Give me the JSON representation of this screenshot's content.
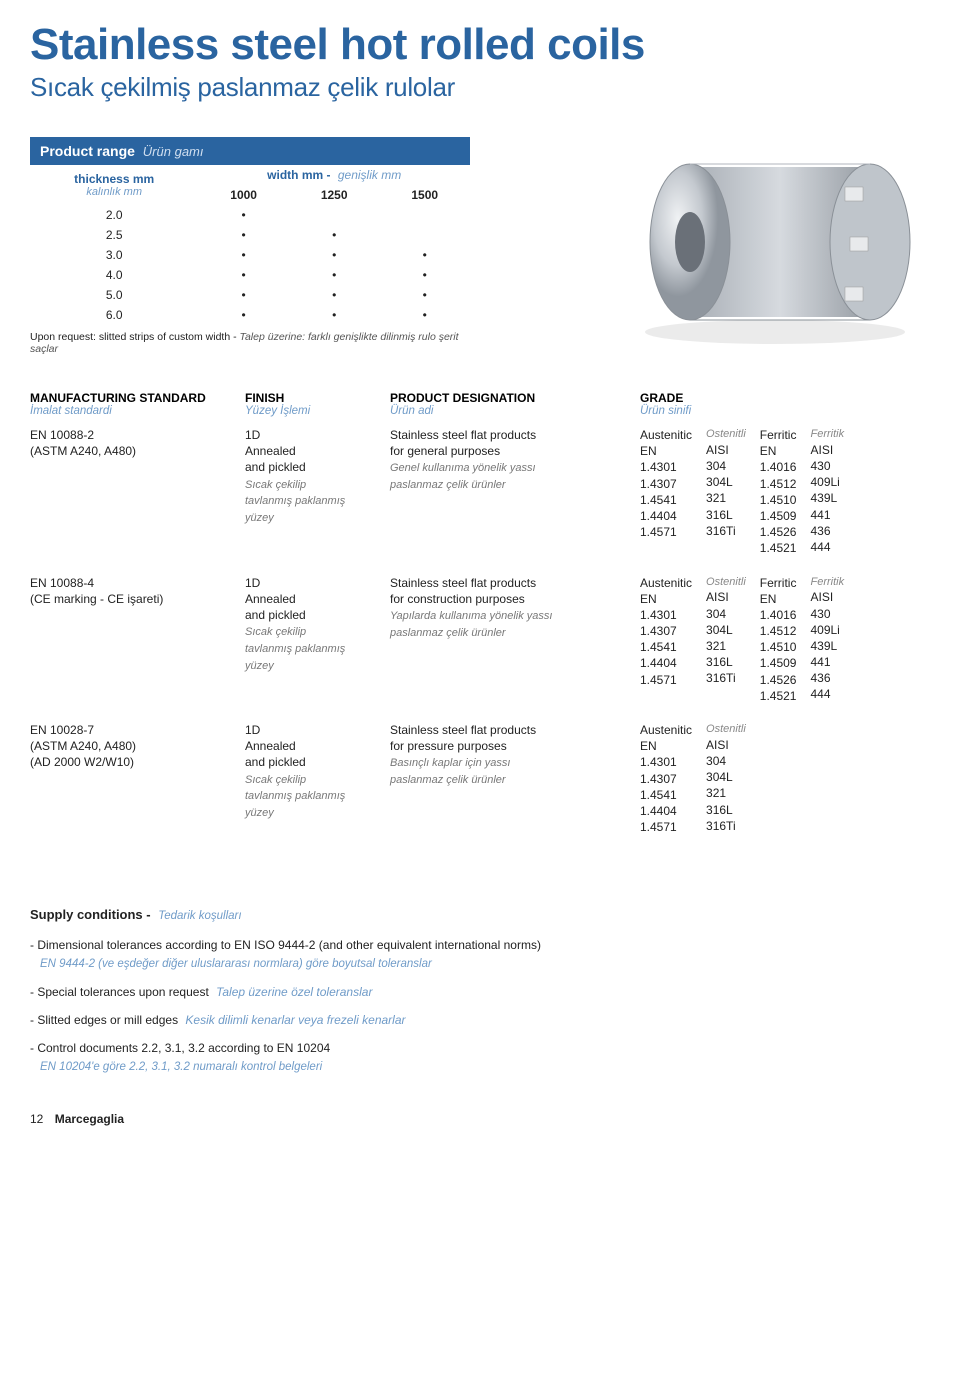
{
  "header": {
    "title": "Stainless steel hot rolled coils",
    "subtitle": "Sıcak çekilmiş paslanmaz çelik rulolar"
  },
  "product_range": {
    "label": "Product range",
    "label_it": "Ürün gamı",
    "thickness_label": "thickness mm",
    "thickness_label_it": "kalınlık mm",
    "width_label": "width mm -",
    "width_label_it": "genişlik mm",
    "widths": [
      "1000",
      "1250",
      "1500"
    ],
    "rows": [
      {
        "t": "2.0",
        "dots": [
          "•",
          "",
          ""
        ]
      },
      {
        "t": "2.5",
        "dots": [
          "•",
          "•",
          ""
        ]
      },
      {
        "t": "3.0",
        "dots": [
          "•",
          "•",
          "•"
        ]
      },
      {
        "t": "4.0",
        "dots": [
          "•",
          "•",
          "•"
        ]
      },
      {
        "t": "5.0",
        "dots": [
          "•",
          "•",
          "•"
        ]
      },
      {
        "t": "6.0",
        "dots": [
          "•",
          "•",
          "•"
        ]
      }
    ],
    "note": "Upon request: slitted strips of custom width -",
    "note_it": "Talep üzerine: farklı genişlikte dilinmiş rulo şerit saçlar"
  },
  "standards": {
    "head_standard": "MANUFACTURING STANDARD",
    "head_standard_it": "İmalat standardi",
    "head_finish": "FINISH",
    "head_finish_it": "Yüzey İşlemi",
    "head_product": "PRODUCT DESIGNATION",
    "head_product_it": "Ürün adi",
    "head_grade": "GRADE",
    "head_grade_it": "Ürün sinifi",
    "rows": [
      {
        "standard_l1": "EN 10088-2",
        "standard_l2": "(ASTM A240, A480)",
        "finish_l1": "1D",
        "finish_l2": "Annealed",
        "finish_l3": "and pickled",
        "finish_it1": "Sıcak çekilip",
        "finish_it2": "tavlanmış paklanmış",
        "finish_it3": "yüzey",
        "product_l1": "Stainless steel flat products",
        "product_l2": "for general purposes",
        "product_it1": "Genel kullanıma yönelik yassı",
        "product_it2": "paslanmaz çelik ürünler",
        "grade": {
          "aust_label": "Austenitic",
          "aust_label_it": "Ostenitli",
          "aust_en_head": "EN",
          "aust_en": [
            "1.4301",
            "1.4307",
            "1.4541",
            "1.4404",
            "1.4571"
          ],
          "aust_aisi_head": "AISI",
          "aust_aisi": [
            "304",
            "304L",
            "321",
            "316L",
            "316Ti"
          ],
          "ferr_label": "Ferritic",
          "ferr_label_it": "Ferritik",
          "ferr_en_head": "EN",
          "ferr_en": [
            "1.4016",
            "1.4512",
            "1.4510",
            "1.4509",
            "1.4526",
            "1.4521"
          ],
          "ferr_aisi_head": "AISI",
          "ferr_aisi": [
            "430",
            "409Li",
            "439L",
            "441",
            "436",
            "444"
          ]
        }
      },
      {
        "standard_l1": "EN 10088-4",
        "standard_l2": "(CE marking - CE işareti)",
        "finish_l1": "1D",
        "finish_l2": "Annealed",
        "finish_l3": "and pickled",
        "finish_it1": "Sıcak çekilip",
        "finish_it2": "tavlanmış paklanmış",
        "finish_it3": "yüzey",
        "product_l1": "Stainless steel flat products",
        "product_l2": "for construction purposes",
        "product_it1": "Yapılarda kullanıma yönelik yassı",
        "product_it2": "paslanmaz çelik ürünler",
        "grade": {
          "aust_label": "Austenitic",
          "aust_label_it": "Ostenitli",
          "aust_en_head": "EN",
          "aust_en": [
            "1.4301",
            "1.4307",
            "1.4541",
            "1.4404",
            "1.4571"
          ],
          "aust_aisi_head": "AISI",
          "aust_aisi": [
            "304",
            "304L",
            "321",
            "316L",
            "316Ti"
          ],
          "ferr_label": "Ferritic",
          "ferr_label_it": "Ferritik",
          "ferr_en_head": "EN",
          "ferr_en": [
            "1.4016",
            "1.4512",
            "1.4510",
            "1.4509",
            "1.4526",
            "1.4521"
          ],
          "ferr_aisi_head": "AISI",
          "ferr_aisi": [
            "430",
            "409Li",
            "439L",
            "441",
            "436",
            "444"
          ]
        }
      },
      {
        "standard_l1": "EN 10028-7",
        "standard_l2": "(ASTM A240, A480)",
        "standard_l3": "(AD 2000 W2/W10)",
        "finish_l1": "1D",
        "finish_l2": "Annealed",
        "finish_l3": "and pickled",
        "finish_it1": "Sıcak çekilip",
        "finish_it2": "tavlanmış paklanmış",
        "finish_it3": "yüzey",
        "product_l1": "Stainless steel flat products",
        "product_l2": "for pressure purposes",
        "product_it1": "Basınçlı kaplar için yassı",
        "product_it2": "paslanmaz çelik ürünler",
        "grade": {
          "aust_label": "Austenitic",
          "aust_label_it": "Ostenitli",
          "aust_en_head": "EN",
          "aust_en": [
            "1.4301",
            "1.4307",
            "1.4541",
            "1.4404",
            "1.4571"
          ],
          "aust_aisi_head": "AISI",
          "aust_aisi": [
            "304",
            "304L",
            "321",
            "316L",
            "316Ti"
          ]
        }
      }
    ]
  },
  "supply": {
    "title": "Supply conditions -",
    "title_it": "Tedarik koşulları",
    "l1": "- Dimensional tolerances according to EN ISO 9444-2 (and other equivalent international norms)",
    "l1_it": "EN 9444-2 (ve eşdeğer diğer uluslararası normlara) göre boyutsal toleranslar",
    "l2": "- Special tolerances upon request",
    "l2_it": "Talep üzerine özel toleranslar",
    "l3": "- Slitted edges or mill edges",
    "l3_it": "Kesik dilimli kenarlar veya frezeli kenarlar",
    "l4": "- Control documents 2.2, 3.1, 3.2 according to EN 10204",
    "l4_it": "EN 10204'e göre 2.2, 3.1, 3.2 numaralı kontrol belgeleri"
  },
  "footer": {
    "page": "12",
    "brand": "Marcegaglia"
  }
}
